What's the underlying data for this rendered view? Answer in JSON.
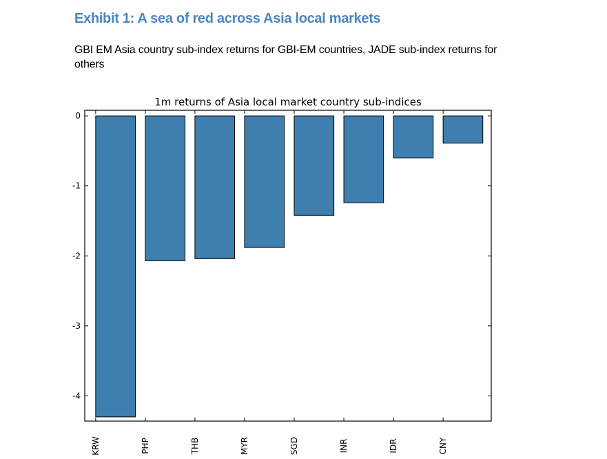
{
  "exhibit": {
    "title": "Exhibit 1: A sea of red across Asia local markets",
    "subtitle": "GBI EM Asia country sub-index returns for GBI-EM countries, JADE sub-index returns for others"
  },
  "chart_data": {
    "type": "bar",
    "title": "1m returns of Asia local market country sub-indices",
    "xlabel": "",
    "ylabel": "",
    "categories": [
      "KRW",
      "PHP",
      "THB",
      "MYR",
      "SGD",
      "INR",
      "IDR",
      "CNY"
    ],
    "values": [
      -4.3,
      -2.07,
      -2.04,
      -1.88,
      -1.42,
      -1.24,
      -0.6,
      -0.39
    ],
    "ylim": [
      -4.36,
      0.08
    ],
    "yticks": [
      0,
      -1,
      -2,
      -3,
      -4
    ],
    "ytick_labels": [
      "0",
      "-1",
      "-2",
      "-3",
      "-4"
    ],
    "grid": false,
    "bar_color": "#3f7fb0",
    "edge_color": "#000000"
  }
}
